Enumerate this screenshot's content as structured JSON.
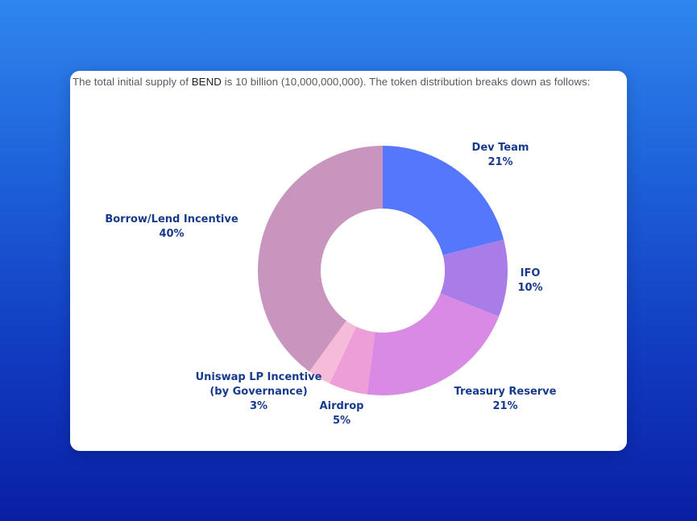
{
  "intro": {
    "before": "The total initial supply of ",
    "token": "BEND",
    "after": " is 10 billion (10,000,000,000). The token distribution breaks down as follows:"
  },
  "chart_data": {
    "type": "pie",
    "style": "donut",
    "start": "top, clockwise",
    "slices": [
      {
        "name": "Dev Team",
        "lines": [
          "Dev Team"
        ],
        "value": 21,
        "label": "21%",
        "color": "#5577fb"
      },
      {
        "name": "IFO",
        "lines": [
          "IFO"
        ],
        "value": 10,
        "label": "10%",
        "color": "#a97de8"
      },
      {
        "name": "Treasury Reserve",
        "lines": [
          "Treasury Reserve"
        ],
        "value": 21,
        "label": "21%",
        "color": "#d88ae4"
      },
      {
        "name": "Airdrop",
        "lines": [
          "Airdrop"
        ],
        "value": 5,
        "label": "5%",
        "color": "#ed9ed8"
      },
      {
        "name": "Uniswap LP Incentive (by Governance)",
        "lines": [
          "Uniswap LP Incentive",
          "(by Governance)"
        ],
        "value": 3,
        "label": "3%",
        "color": "#f6bbd6"
      },
      {
        "name": "Borrow/Lend Incentive",
        "lines": [
          "Borrow/Lend Incentive"
        ],
        "value": 40,
        "label": "40%",
        "color": "#c795bd"
      }
    ]
  }
}
